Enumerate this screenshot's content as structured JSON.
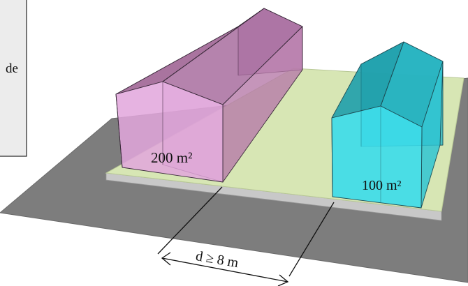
{
  "side_panel": {
    "text": "de"
  },
  "buildings": {
    "large_area_label": "200 m²",
    "small_area_label": "100 m²"
  },
  "distance": {
    "label": "d ≥ 8 m"
  },
  "colors": {
    "road": "#7d7d7d",
    "lot": "#d7e6b4",
    "curb": "#c8c8c8",
    "large_building": "#e2a6dc",
    "small_building": "#3bdcea",
    "outline": "#1a1a1a"
  }
}
